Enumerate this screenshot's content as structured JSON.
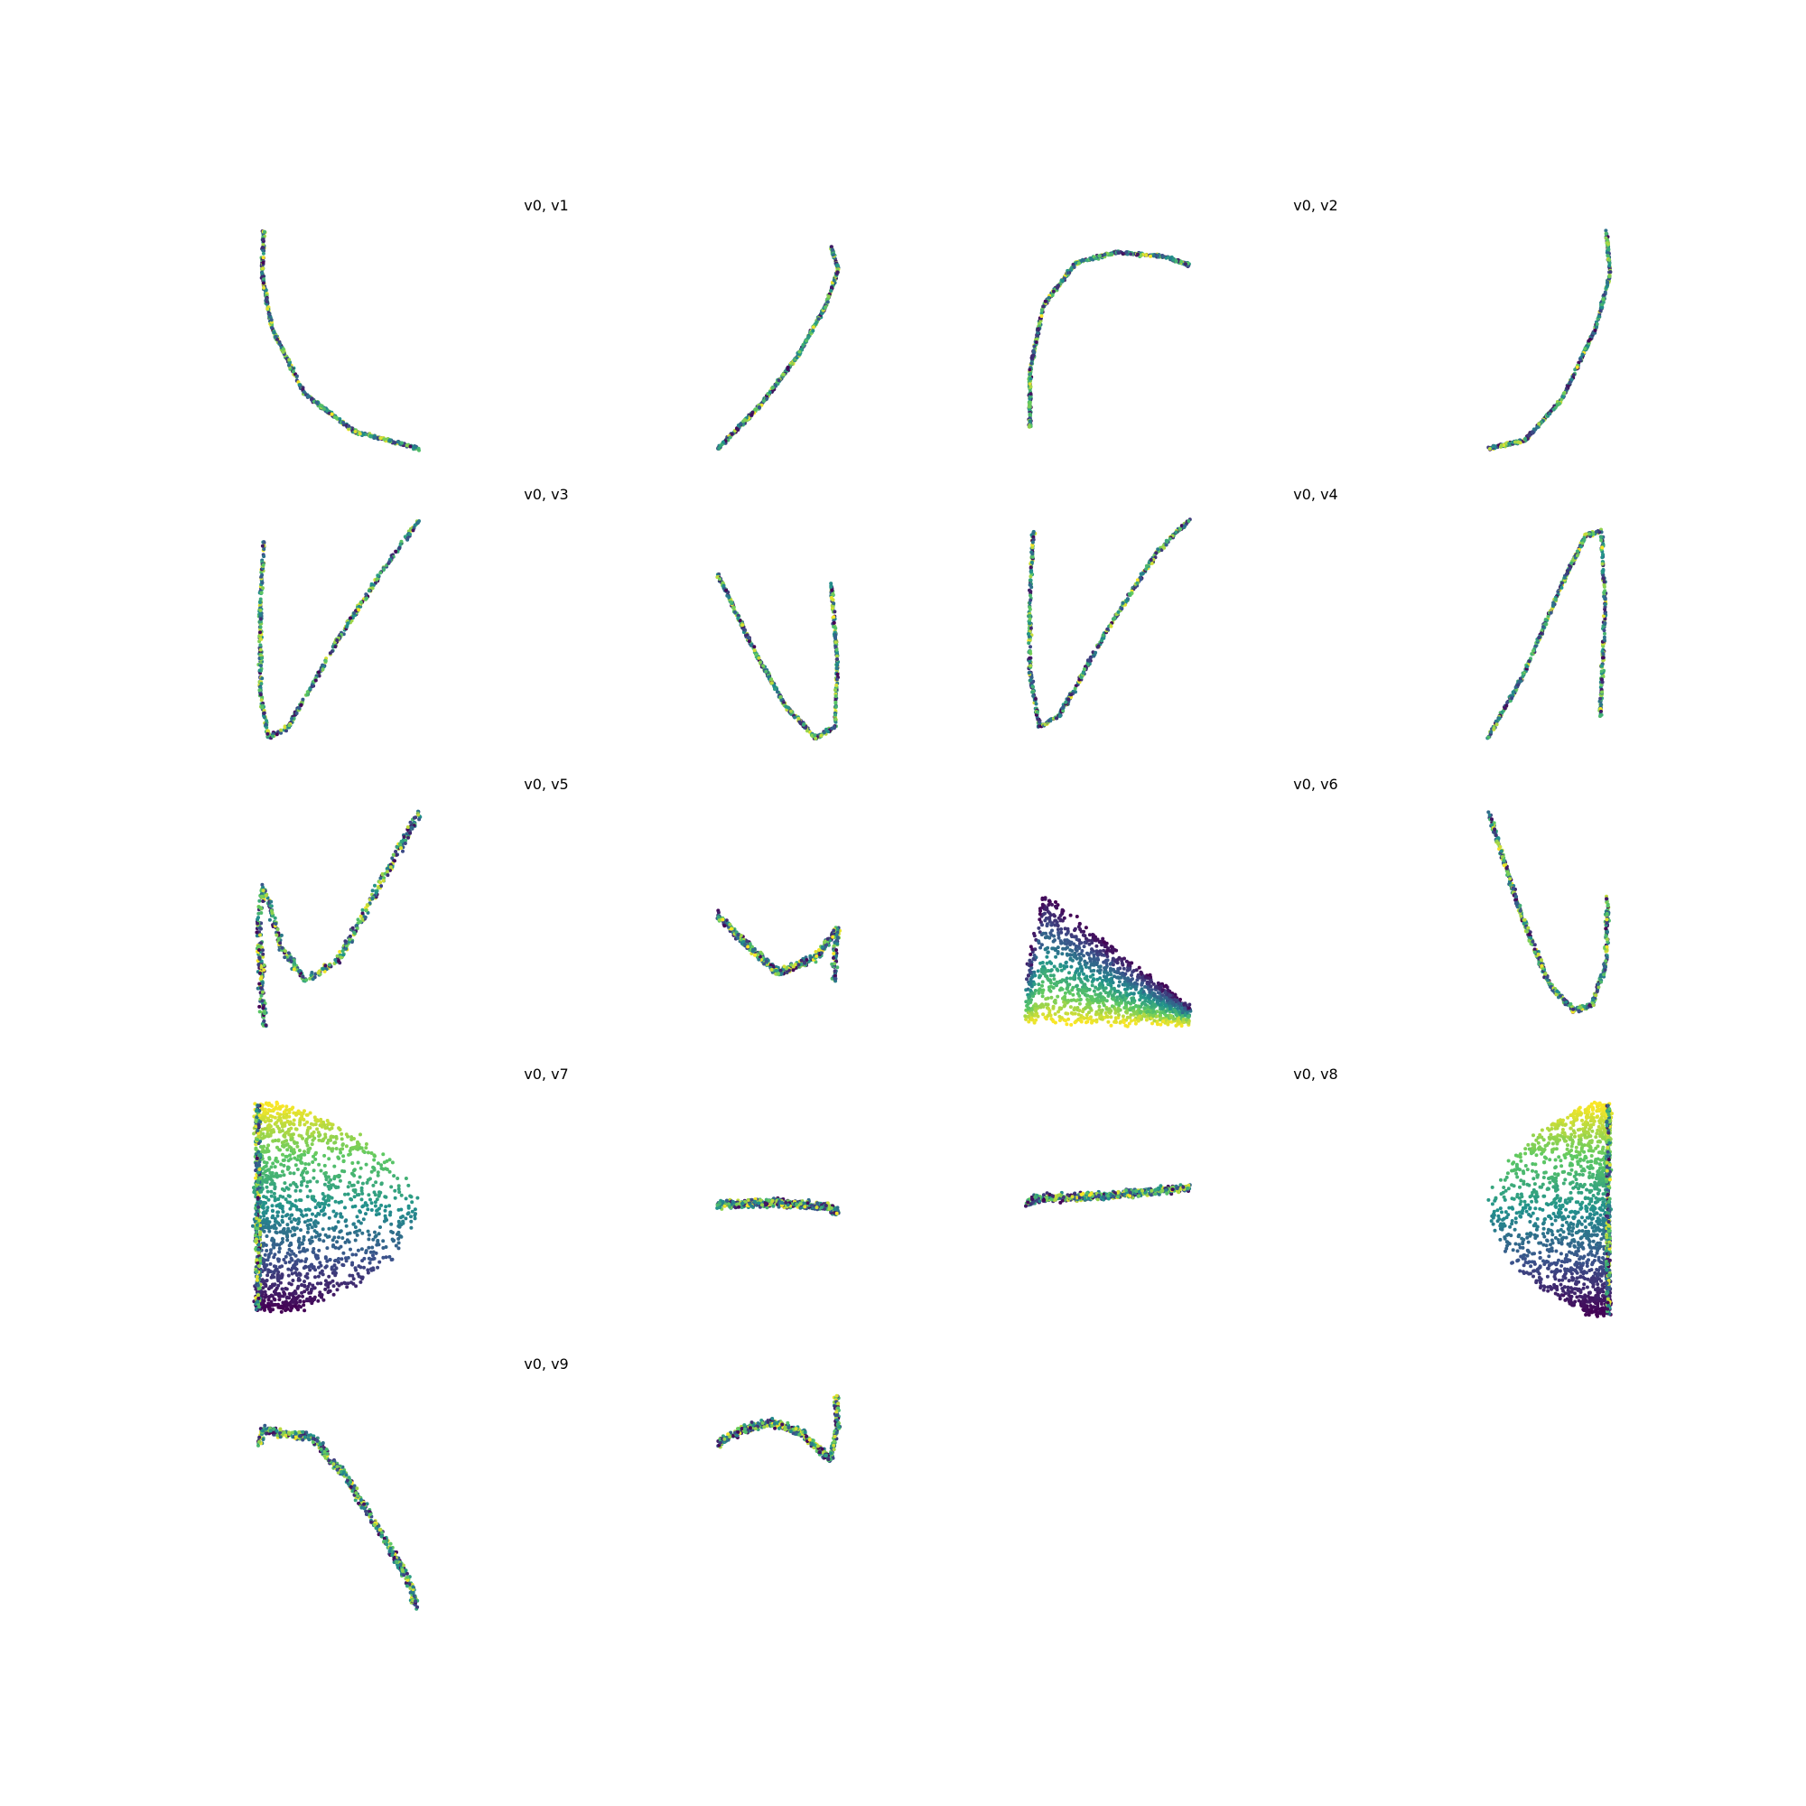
{
  "figure": {
    "colormap": "viridis",
    "colors": [
      "#440154",
      "#3b528b",
      "#21918c",
      "#5ec962",
      "#fde725"
    ],
    "axes_visible": false
  },
  "chart_data": [
    {
      "type": "scatter",
      "title": "v0, v1",
      "xlabel": "",
      "ylabel": "",
      "grid": false,
      "xlim": [
        0,
        1
      ],
      "ylim": [
        0,
        1
      ],
      "noise": 0.008,
      "left": {
        "curve": [
          [
            0.05,
            1.0
          ],
          [
            0.04,
            0.8
          ],
          [
            0.1,
            0.55
          ],
          [
            0.3,
            0.25
          ],
          [
            0.6,
            0.08
          ],
          [
            1.0,
            0.0
          ]
        ]
      },
      "right": {
        "curve": [
          [
            0.0,
            0.0
          ],
          [
            0.35,
            0.2
          ],
          [
            0.65,
            0.42
          ],
          [
            0.88,
            0.65
          ],
          [
            0.99,
            0.82
          ],
          [
            0.93,
            0.92
          ]
        ]
      }
    },
    {
      "type": "scatter",
      "title": "v0, v2",
      "xlabel": "",
      "ylabel": "",
      "grid": false,
      "xlim": [
        0,
        1
      ],
      "ylim": [
        0,
        1
      ],
      "noise": 0.008,
      "left": {
        "curve": [
          [
            0.02,
            0.1
          ],
          [
            0.02,
            0.35
          ],
          [
            0.1,
            0.65
          ],
          [
            0.3,
            0.85
          ],
          [
            0.55,
            0.9
          ],
          [
            0.85,
            0.88
          ],
          [
            1.0,
            0.84
          ]
        ]
      },
      "right": {
        "curve": [
          [
            0.0,
            0.0
          ],
          [
            0.3,
            0.04
          ],
          [
            0.6,
            0.22
          ],
          [
            0.88,
            0.55
          ],
          [
            1.0,
            0.8
          ],
          [
            0.97,
            1.0
          ]
        ]
      }
    },
    {
      "type": "scatter",
      "title": "v0, v3",
      "xlabel": "",
      "ylabel": "",
      "grid": false,
      "xlim": [
        0,
        1
      ],
      "ylim": [
        0,
        1
      ],
      "noise": 0.01,
      "left": {
        "curve": [
          [
            0.05,
            0.9
          ],
          [
            0.03,
            0.6
          ],
          [
            0.03,
            0.2
          ],
          [
            0.08,
            0.0
          ],
          [
            0.2,
            0.05
          ],
          [
            0.5,
            0.45
          ],
          [
            0.8,
            0.8
          ],
          [
            1.0,
            1.0
          ]
        ]
      },
      "right": {
        "curve": [
          [
            0.0,
            0.75
          ],
          [
            0.3,
            0.4
          ],
          [
            0.55,
            0.15
          ],
          [
            0.8,
            0.0
          ],
          [
            0.96,
            0.05
          ],
          [
            0.98,
            0.35
          ],
          [
            0.93,
            0.7
          ]
        ]
      }
    },
    {
      "type": "scatter",
      "title": "v0, v4",
      "xlabel": "",
      "ylabel": "",
      "grid": false,
      "xlim": [
        0,
        1
      ],
      "ylim": [
        0,
        1
      ],
      "noise": 0.01,
      "left": {
        "curve": [
          [
            0.04,
            0.95
          ],
          [
            0.02,
            0.6
          ],
          [
            0.02,
            0.3
          ],
          [
            0.08,
            0.05
          ],
          [
            0.2,
            0.1
          ],
          [
            0.5,
            0.5
          ],
          [
            0.8,
            0.85
          ],
          [
            1.0,
            1.0
          ]
        ]
      },
      "right": {
        "curve": [
          [
            0.0,
            0.0
          ],
          [
            0.3,
            0.3
          ],
          [
            0.6,
            0.7
          ],
          [
            0.8,
            0.93
          ],
          [
            0.93,
            0.95
          ],
          [
            0.96,
            0.6
          ],
          [
            0.92,
            0.1
          ]
        ]
      }
    },
    {
      "type": "scatter",
      "title": "v0, v5",
      "xlabel": "",
      "ylabel": "",
      "grid": false,
      "xlim": [
        0,
        1
      ],
      "ylim": [
        0,
        1
      ],
      "noise": 0.02,
      "left": {
        "curve": [
          [
            0.05,
            0.0
          ],
          [
            0.02,
            0.5
          ],
          [
            0.05,
            0.65
          ],
          [
            0.15,
            0.38
          ],
          [
            0.3,
            0.22
          ],
          [
            0.5,
            0.3
          ],
          [
            0.75,
            0.65
          ],
          [
            1.0,
            1.0
          ]
        ]
      },
      "right": {
        "curve": [
          [
            0.0,
            0.52
          ],
          [
            0.2,
            0.4
          ],
          [
            0.5,
            0.25
          ],
          [
            0.8,
            0.32
          ],
          [
            0.98,
            0.45
          ],
          [
            0.95,
            0.22
          ]
        ]
      }
    },
    {
      "type": "scatter",
      "title": "v0, v6",
      "xlabel": "",
      "ylabel": "",
      "grid": false,
      "xlim": [
        0,
        1
      ],
      "ylim": [
        0,
        1
      ],
      "noise": 0.015,
      "left": {
        "region": "wedge-peak",
        "x": [
          0.0,
          1.0
        ],
        "peak": [
          0.1,
          0.62
        ],
        "y_low": 0.02,
        "tail": [
          1.0,
          0.1
        ]
      },
      "right": {
        "curve": [
          [
            0.0,
            1.0
          ],
          [
            0.25,
            0.55
          ],
          [
            0.5,
            0.2
          ],
          [
            0.7,
            0.08
          ],
          [
            0.85,
            0.1
          ],
          [
            0.97,
            0.3
          ],
          [
            0.98,
            0.6
          ]
        ]
      }
    },
    {
      "type": "scatter",
      "title": "v0, v7",
      "xlabel": "",
      "ylabel": "",
      "grid": false,
      "xlim": [
        0,
        1
      ],
      "ylim": [
        0,
        1
      ],
      "noise": 0.02,
      "left": {
        "region": "half-fan",
        "edge": "left",
        "x": [
          0.0,
          1.0
        ],
        "y": [
          0.04,
          0.98
        ]
      },
      "right": {
        "curve": [
          [
            0.0,
            0.52
          ],
          [
            0.5,
            0.53
          ],
          [
            0.9,
            0.51
          ],
          [
            0.99,
            0.48
          ]
        ]
      }
    },
    {
      "type": "scatter",
      "title": "v0, v8",
      "xlabel": "",
      "ylabel": "",
      "grid": false,
      "xlim": [
        0,
        1
      ],
      "ylim": [
        0,
        1
      ],
      "noise": 0.02,
      "left": {
        "curve": [
          [
            0.0,
            0.52
          ],
          [
            0.05,
            0.55
          ],
          [
            0.5,
            0.56
          ],
          [
            1.0,
            0.6
          ]
        ]
      },
      "right": {
        "region": "half-fan",
        "edge": "right",
        "x": [
          0.0,
          1.0
        ],
        "y": [
          0.02,
          0.98
        ]
      }
    },
    {
      "type": "scatter",
      "title": "v0, v9",
      "xlabel": "",
      "ylabel": "",
      "grid": false,
      "xlim": [
        0,
        1
      ],
      "ylim": [
        0,
        1
      ],
      "noise": 0.02,
      "left": {
        "curve": [
          [
            0.02,
            0.75
          ],
          [
            0.05,
            0.82
          ],
          [
            0.15,
            0.8
          ],
          [
            0.35,
            0.78
          ],
          [
            0.55,
            0.6
          ],
          [
            0.8,
            0.3
          ],
          [
            0.95,
            0.1
          ],
          [
            0.98,
            0.0
          ]
        ]
      },
      "right": {
        "curve": [
          [
            0.0,
            0.75
          ],
          [
            0.2,
            0.82
          ],
          [
            0.45,
            0.85
          ],
          [
            0.7,
            0.8
          ],
          [
            0.92,
            0.68
          ],
          [
            0.98,
            0.82
          ],
          [
            0.97,
            0.97
          ]
        ]
      }
    }
  ]
}
